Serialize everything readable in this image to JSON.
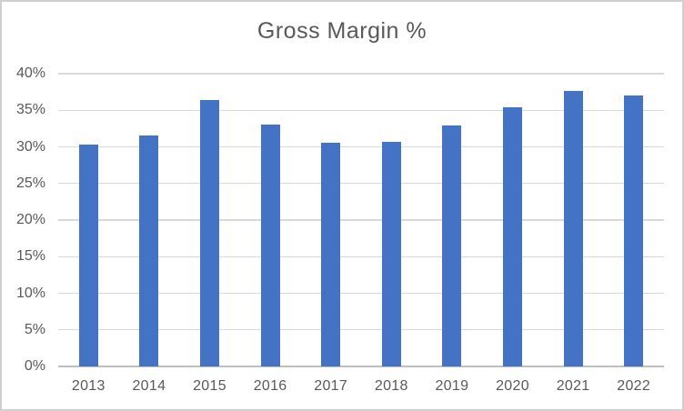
{
  "chart_data": {
    "type": "bar",
    "title": "Gross Margin %",
    "categories": [
      "2013",
      "2014",
      "2015",
      "2016",
      "2017",
      "2018",
      "2019",
      "2020",
      "2021",
      "2022"
    ],
    "series": [
      {
        "name": "Gross Margin %",
        "values": [
          30.3,
          31.5,
          36.4,
          33.0,
          30.5,
          30.7,
          32.9,
          35.4,
          37.7,
          37.0
        ]
      }
    ],
    "xlabel": "",
    "ylabel": "",
    "ylim": [
      0,
      40
    ],
    "ytick_step": 5,
    "ytick_labels": [
      "0%",
      "5%",
      "10%",
      "15%",
      "20%",
      "25%",
      "30%",
      "35%",
      "40%"
    ],
    "legend": "none",
    "grid": "horizontal",
    "colors": {
      "bar": "#4472C4",
      "gridline": "#D9D9D9",
      "axis_line": "#BFBFBF",
      "text": "#595959",
      "border": "#D0CECE",
      "background": "#FFFFFF"
    }
  }
}
